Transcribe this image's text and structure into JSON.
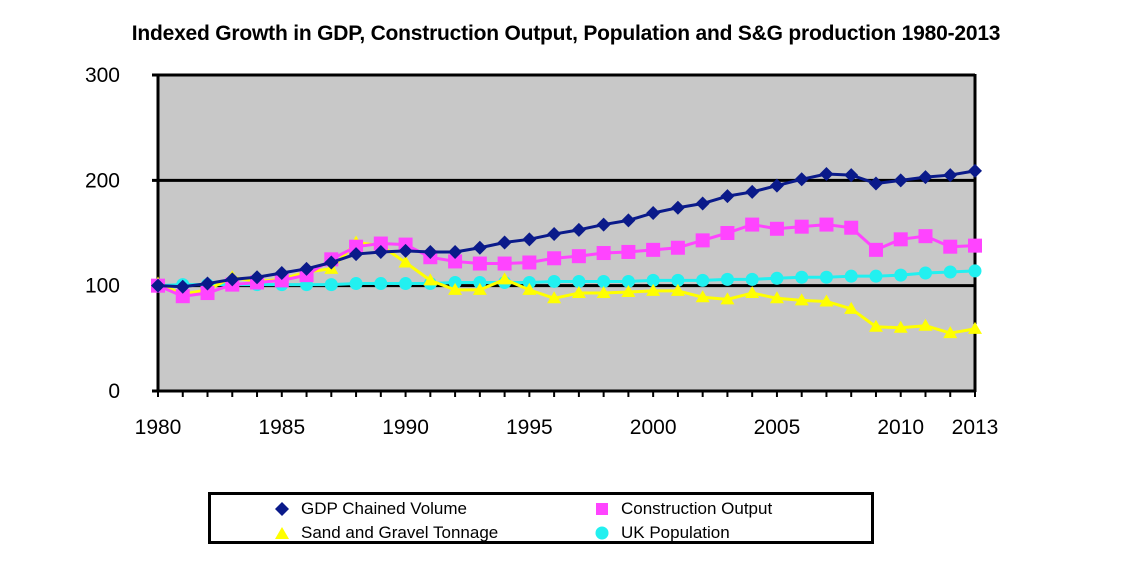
{
  "chart_data": {
    "type": "line",
    "title": "Indexed Growth in GDP, Construction Output, Population and S&G production 1980-2013",
    "xlabel": "",
    "ylabel": "",
    "xlim": [
      1980,
      2013
    ],
    "ylim": [
      0,
      300
    ],
    "yticks": [
      0,
      100,
      200,
      300
    ],
    "xtick_labels": [
      "1980",
      "1985",
      "1990",
      "1995",
      "2000",
      "2005",
      "2010",
      "2013"
    ],
    "xtick_values": [
      1980,
      1985,
      1990,
      1995,
      2000,
      2005,
      2010,
      2013
    ],
    "ytick_labels": [
      "0",
      "100",
      "200",
      "300"
    ],
    "grid": "horizontal major gridlines at 100 and 200",
    "background": "#C8C8C8",
    "legend_position": "bottom",
    "x": [
      1980,
      1981,
      1982,
      1983,
      1984,
      1985,
      1986,
      1987,
      1988,
      1989,
      1990,
      1991,
      1992,
      1993,
      1994,
      1995,
      1996,
      1997,
      1998,
      1999,
      2000,
      2001,
      2002,
      2003,
      2004,
      2005,
      2006,
      2007,
      2008,
      2009,
      2010,
      2011,
      2012,
      2013
    ],
    "series": [
      {
        "name": "GDP Chained Volume",
        "color": "#0A1A8A",
        "marker": "diamond",
        "values": [
          100,
          99,
          102,
          106,
          108,
          112,
          116,
          122,
          130,
          132,
          133,
          132,
          132,
          136,
          141,
          144,
          149,
          153,
          158,
          162,
          169,
          174,
          178,
          185,
          189,
          195,
          201,
          206,
          205,
          197,
          200,
          203,
          205,
          209
        ]
      },
      {
        "name": "Construction Output",
        "color": "#FF44FF",
        "marker": "square",
        "values": [
          100,
          90,
          93,
          101,
          103,
          105,
          110,
          125,
          137,
          140,
          139,
          127,
          123,
          121,
          121,
          122,
          126,
          128,
          131,
          132,
          134,
          136,
          143,
          150,
          158,
          154,
          156,
          158,
          155,
          134,
          144,
          147,
          137,
          138
        ]
      },
      {
        "name": "Sand and Gravel Tonnage",
        "color": "#FFFF00",
        "marker": "triangle",
        "values": [
          102,
          92,
          96,
          108,
          104,
          106,
          113,
          116,
          141,
          138,
          122,
          105,
          96,
          96,
          106,
          96,
          88,
          93,
          93,
          94,
          95,
          95,
          89,
          87,
          93,
          88,
          86,
          85,
          78,
          61,
          60,
          62,
          55,
          59
        ]
      },
      {
        "name": "UK Population",
        "color": "#22F0F0",
        "marker": "circle",
        "values": [
          100,
          101,
          101,
          101,
          101,
          101,
          101,
          101,
          102,
          102,
          102,
          102,
          103,
          103,
          103,
          103,
          104,
          104,
          104,
          104,
          105,
          105,
          105,
          106,
          106,
          107,
          108,
          108,
          109,
          109,
          110,
          112,
          113,
          114
        ]
      }
    ]
  }
}
